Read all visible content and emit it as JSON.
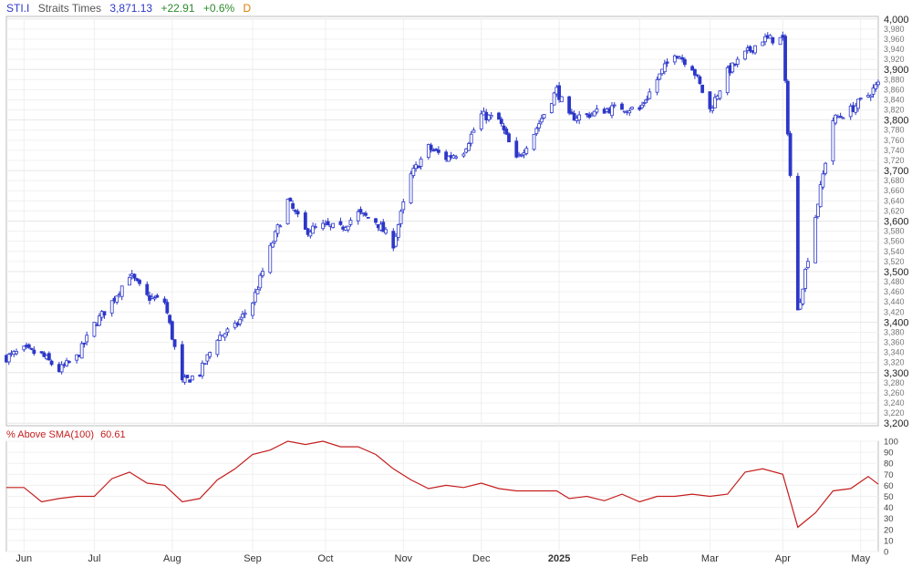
{
  "header": {
    "symbol": "STI.I",
    "name": "Straits Times",
    "last": "3,871.13",
    "change": "+22.91",
    "change_pct": "+0.6%",
    "period": "D"
  },
  "indicator": {
    "label": "% Above SMA(100)",
    "value": "60.61"
  },
  "colors": {
    "up_candle": "#2c37c8",
    "down_candle": "#2c37c8",
    "indicator_line": "#c41e1e",
    "grid": "#e6e6e6",
    "axis_text": "#333333",
    "header_symbol": "#2c37c8",
    "header_name": "#555555",
    "header_last": "#2c37c8",
    "header_change": "#2e8b2e",
    "header_period": "#e07b00",
    "indicator_title": "#c41e1e"
  },
  "chart_data": [
    {
      "type": "candlestick",
      "title": "",
      "ylim": [
        3195,
        4005
      ],
      "yticks_major": [
        "3,200",
        "3,300",
        "3,400",
        "3,500",
        "3,600",
        "3,700",
        "3,800",
        "3,900",
        "4,000"
      ],
      "yticks_minor": [
        "3,220",
        "3,240",
        "3,260",
        "3,280",
        "3,320",
        "3,340",
        "3,360",
        "3,380",
        "3,420",
        "3,440",
        "3,460",
        "3,480",
        "3,520",
        "3,540",
        "3,560",
        "3,580",
        "3,620",
        "3,640",
        "3,660",
        "3,680",
        "3,720",
        "3,740",
        "3,760",
        "3,780",
        "3,820",
        "3,840",
        "3,860",
        "3,880",
        "3,920",
        "3,940",
        "3,960",
        "3,980"
      ],
      "xticks": [
        "Jun",
        "Jul",
        "Aug",
        "Sep",
        "Oct",
        "Nov",
        "Dec",
        "2025",
        "Feb",
        "Mar",
        "Apr",
        "May"
      ],
      "x_range": [
        "2024-05-27",
        "2025-05-09"
      ],
      "close_path": [
        [
          "2024-05-27",
          3330
        ],
        [
          "2024-06-03",
          3345
        ],
        [
          "2024-06-10",
          3335
        ],
        [
          "2024-06-17",
          3305
        ],
        [
          "2024-06-24",
          3330
        ],
        [
          "2024-07-01",
          3395
        ],
        [
          "2024-07-08",
          3440
        ],
        [
          "2024-07-15",
          3495
        ],
        [
          "2024-07-22",
          3450
        ],
        [
          "2024-07-29",
          3440
        ],
        [
          "2024-08-05",
          3280
        ],
        [
          "2024-08-12",
          3300
        ],
        [
          "2024-08-19",
          3370
        ],
        [
          "2024-08-26",
          3390
        ],
        [
          "2024-09-02",
          3440
        ],
        [
          "2024-09-09",
          3545
        ],
        [
          "2024-09-16",
          3640
        ],
        [
          "2024-09-23",
          3580
        ],
        [
          "2024-09-30",
          3590
        ],
        [
          "2024-10-07",
          3585
        ],
        [
          "2024-10-14",
          3615
        ],
        [
          "2024-10-21",
          3600
        ],
        [
          "2024-10-28",
          3555
        ],
        [
          "2024-11-04",
          3690
        ],
        [
          "2024-11-11",
          3745
        ],
        [
          "2024-11-18",
          3725
        ],
        [
          "2024-11-25",
          3740
        ],
        [
          "2024-12-02",
          3810
        ],
        [
          "2024-12-09",
          3800
        ],
        [
          "2024-12-16",
          3720
        ],
        [
          "2024-12-23",
          3775
        ],
        [
          "2025-01-01",
          3860
        ],
        [
          "2025-01-06",
          3805
        ],
        [
          "2025-01-13",
          3810
        ],
        [
          "2025-01-20",
          3820
        ],
        [
          "2025-01-27",
          3825
        ],
        [
          "2025-02-03",
          3820
        ],
        [
          "2025-02-10",
          3880
        ],
        [
          "2025-02-17",
          3935
        ],
        [
          "2025-02-24",
          3905
        ],
        [
          "2025-03-03",
          3820
        ],
        [
          "2025-03-10",
          3895
        ],
        [
          "2025-03-17",
          3930
        ],
        [
          "2025-03-24",
          3960
        ],
        [
          "2025-04-01",
          3960
        ],
        [
          "2025-04-07",
          3420
        ],
        [
          "2025-04-14",
          3610
        ],
        [
          "2025-04-21",
          3800
        ],
        [
          "2025-04-28",
          3820
        ],
        [
          "2025-05-05",
          3850
        ],
        [
          "2025-05-09",
          3871
        ]
      ]
    },
    {
      "type": "line",
      "title": "% Above SMA(100)",
      "ylim": [
        0,
        100
      ],
      "yticks": [
        "0",
        "10",
        "20",
        "30",
        "40",
        "50",
        "60",
        "70",
        "80",
        "90",
        "100"
      ],
      "series": [
        {
          "name": "% Above SMA(100)",
          "values": [
            [
              "2024-05-27",
              58
            ],
            [
              "2024-06-03",
              58
            ],
            [
              "2024-06-10",
              45
            ],
            [
              "2024-06-17",
              48
            ],
            [
              "2024-06-24",
              50
            ],
            [
              "2024-07-01",
              50
            ],
            [
              "2024-07-08",
              66
            ],
            [
              "2024-07-15",
              72
            ],
            [
              "2024-07-22",
              62
            ],
            [
              "2024-07-29",
              60
            ],
            [
              "2024-08-05",
              45
            ],
            [
              "2024-08-12",
              48
            ],
            [
              "2024-08-19",
              65
            ],
            [
              "2024-08-26",
              75
            ],
            [
              "2024-09-02",
              88
            ],
            [
              "2024-09-09",
              92
            ],
            [
              "2024-09-16",
              100
            ],
            [
              "2024-09-23",
              97
            ],
            [
              "2024-09-30",
              100
            ],
            [
              "2024-10-07",
              95
            ],
            [
              "2024-10-14",
              95
            ],
            [
              "2024-10-21",
              88
            ],
            [
              "2024-10-28",
              75
            ],
            [
              "2024-11-04",
              65
            ],
            [
              "2024-11-11",
              57
            ],
            [
              "2024-11-18",
              60
            ],
            [
              "2024-11-25",
              58
            ],
            [
              "2024-12-02",
              62
            ],
            [
              "2024-12-09",
              57
            ],
            [
              "2024-12-16",
              55
            ],
            [
              "2024-12-23",
              55
            ],
            [
              "2025-01-01",
              55
            ],
            [
              "2025-01-06",
              48
            ],
            [
              "2025-01-13",
              50
            ],
            [
              "2025-01-20",
              46
            ],
            [
              "2025-01-27",
              52
            ],
            [
              "2025-02-03",
              45
            ],
            [
              "2025-02-10",
              50
            ],
            [
              "2025-02-17",
              50
            ],
            [
              "2025-02-24",
              52
            ],
            [
              "2025-03-03",
              50
            ],
            [
              "2025-03-10",
              52
            ],
            [
              "2025-03-17",
              72
            ],
            [
              "2025-03-24",
              75
            ],
            [
              "2025-04-01",
              70
            ],
            [
              "2025-04-07",
              22
            ],
            [
              "2025-04-14",
              35
            ],
            [
              "2025-04-21",
              55
            ],
            [
              "2025-04-28",
              57
            ],
            [
              "2025-05-05",
              68
            ],
            [
              "2025-05-09",
              61
            ]
          ]
        }
      ]
    }
  ]
}
